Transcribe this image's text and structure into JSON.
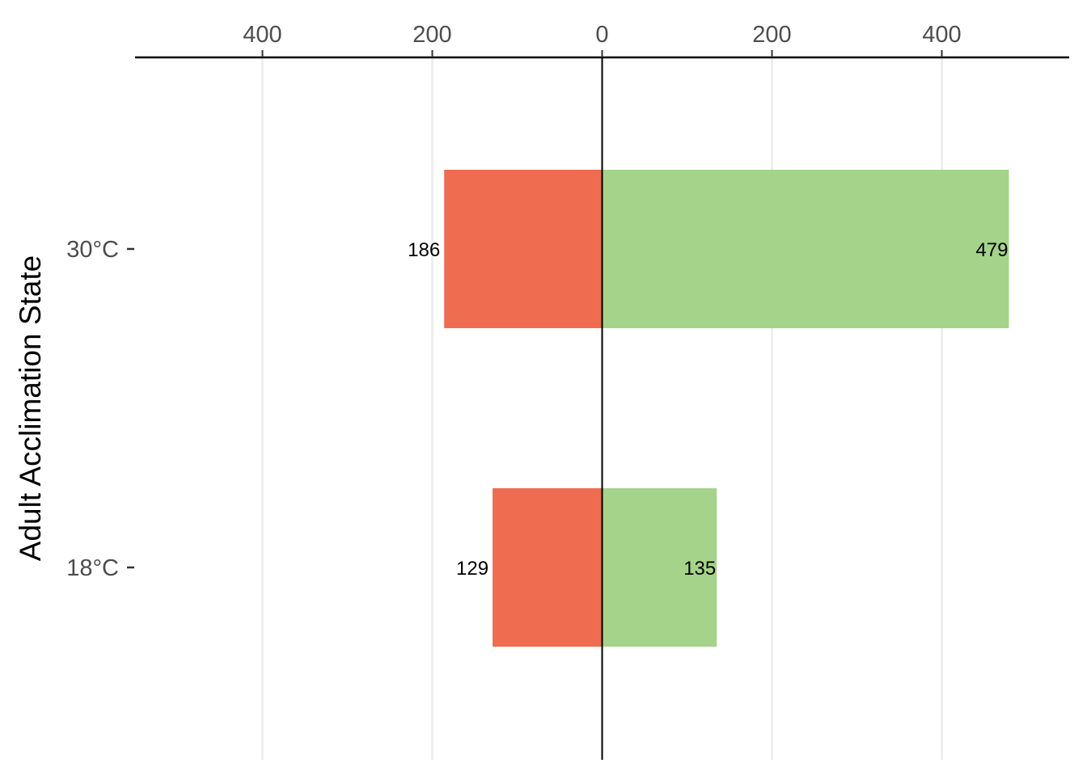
{
  "chart_data": {
    "type": "bar",
    "orientation": "horizontal-diverging",
    "ylabel": "Adult Acclimation State",
    "xlabel": "",
    "title": "",
    "categories": [
      "30°C",
      "18°C"
    ],
    "series": [
      {
        "side": "left",
        "color": "#EF6C51",
        "values": [
          186,
          129
        ]
      },
      {
        "side": "right",
        "color": "#A5D38A",
        "values": [
          479,
          135
        ]
      }
    ],
    "xlim": [
      -550,
      550
    ],
    "x_ticks": [
      -400,
      -200,
      0,
      200,
      400
    ],
    "x_tick_labels": [
      "400",
      "200",
      "0",
      "200",
      "400"
    ],
    "x_axis_position": "top",
    "grid": "vertical major lines",
    "legend": "none"
  }
}
